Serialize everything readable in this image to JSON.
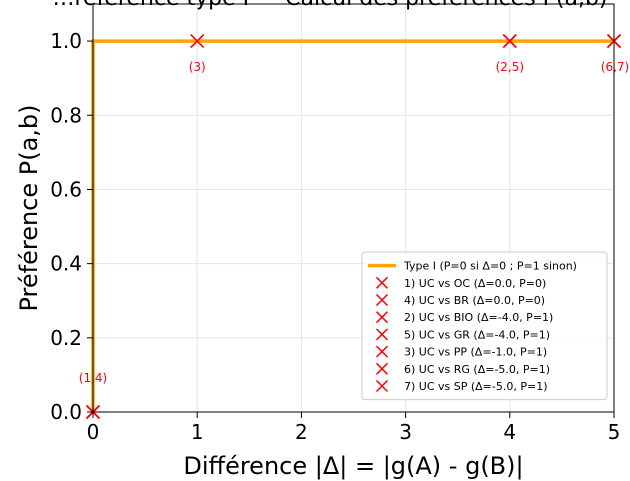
{
  "chart_data": {
    "type": "line",
    "title": "…référence type I — Calcul des préférences P(a,b)",
    "xlabel": "Différence |Δ| = |g(A) - g(B)|",
    "ylabel": "Préférence P(a,b)",
    "xlim": [
      0,
      5
    ],
    "ylim": [
      0,
      1.1
    ],
    "xticks": [
      0,
      1,
      2,
      3,
      4,
      5
    ],
    "xtick_labels": [
      "0",
      "1",
      "2",
      "3",
      "4",
      "5"
    ],
    "yticks": [
      0,
      0.2,
      0.4,
      0.6,
      0.8,
      1.0
    ],
    "ytick_labels": [
      "0.0",
      "0.2",
      "0.4",
      "0.6",
      "0.8",
      "1.0"
    ],
    "grid": true,
    "legend_position": "lower-right",
    "colors": {
      "line": "#FFA500",
      "marker": "#FF0000",
      "annotation": "#FF0000",
      "grid": "#E5E5E5"
    },
    "series": [
      {
        "name": "Type I (P=0 si Δ=0 ; P=1 sinon)",
        "kind": "line",
        "x": [
          0,
          0,
          5
        ],
        "y": [
          0,
          1,
          1
        ]
      }
    ],
    "points": [
      {
        "label": "1) UC vs OC  (Δ=0.0, P=0)",
        "x": 0,
        "y": 0
      },
      {
        "label": "4) UC vs BR  (Δ=0.0, P=0)",
        "x": 0,
        "y": 0
      },
      {
        "label": "2) UC vs BIO  (Δ=-4.0, P=1)",
        "x": 4,
        "y": 1
      },
      {
        "label": "5) UC vs GR  (Δ=-4.0, P=1)",
        "x": 4,
        "y": 1
      },
      {
        "label": "3) UC vs PP  (Δ=-1.0, P=1)",
        "x": 1,
        "y": 1
      },
      {
        "label": "6) UC vs RG  (Δ=-5.0, P=1)",
        "x": 5,
        "y": 1
      },
      {
        "label": "7) UC vs SP  (Δ=-5.0, P=1)",
        "x": 5,
        "y": 1
      }
    ],
    "annotations": [
      {
        "text": "(1,4)",
        "x": 0,
        "y": 0
      },
      {
        "text": "(3)",
        "x": 1,
        "y": 1
      },
      {
        "text": "(2,5)",
        "x": 4,
        "y": 1
      },
      {
        "text": "(6,7)",
        "x": 5,
        "y": 1
      }
    ]
  }
}
